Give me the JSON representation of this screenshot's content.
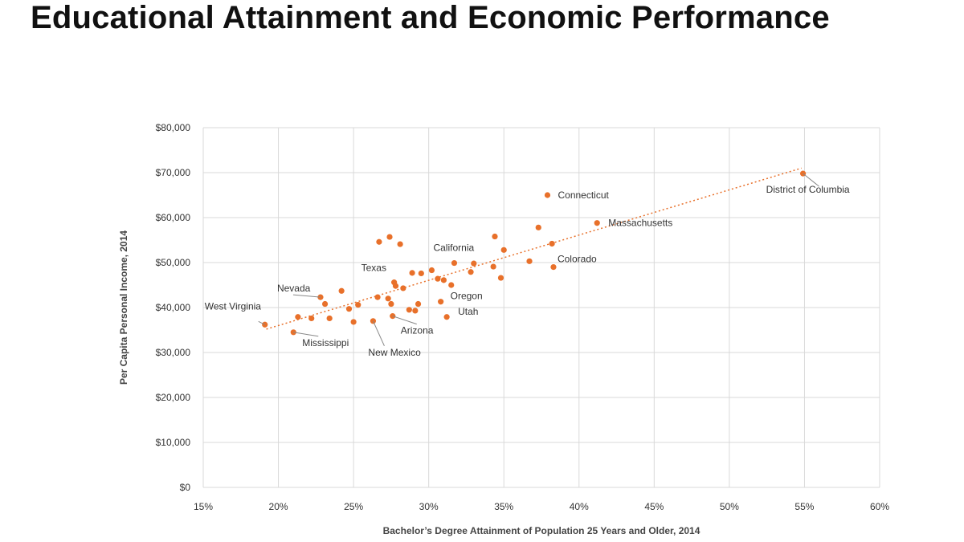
{
  "slide": {
    "title": "Educational Attainment and Economic Performance"
  },
  "chart_data": {
    "type": "scatter",
    "title": "Educational Attainment and Economic Performance",
    "xlabel": "Bachelor’s Degree Attainment of Population 25 Years and Older, 2014",
    "ylabel": "Per Capita Personal Income, 2014",
    "xlim": [
      15,
      60
    ],
    "ylim": [
      0,
      80000
    ],
    "x_ticks": [
      {
        "value": 15,
        "label": "15%"
      },
      {
        "value": 20,
        "label": "20%"
      },
      {
        "value": 25,
        "label": "25%"
      },
      {
        "value": 30,
        "label": "30%"
      },
      {
        "value": 35,
        "label": "35%"
      },
      {
        "value": 40,
        "label": "40%"
      },
      {
        "value": 45,
        "label": "45%"
      },
      {
        "value": 50,
        "label": "50%"
      },
      {
        "value": 55,
        "label": "55%"
      },
      {
        "value": 60,
        "label": "60%"
      }
    ],
    "y_ticks": [
      {
        "value": 0,
        "label": "$0"
      },
      {
        "value": 10000,
        "label": "$10,000"
      },
      {
        "value": 20000,
        "label": "$20,000"
      },
      {
        "value": 30000,
        "label": "$30,000"
      },
      {
        "value": 40000,
        "label": "$40,000"
      },
      {
        "value": 50000,
        "label": "$50,000"
      },
      {
        "value": 60000,
        "label": "$60,000"
      },
      {
        "value": 70000,
        "label": "$70,000"
      },
      {
        "value": 80000,
        "label": "$80,000"
      }
    ],
    "grid": true,
    "point_color": "#E8702A",
    "trendline": {
      "style": "dotted",
      "color": "#E8702A",
      "from": [
        19.2,
        35200
      ],
      "to": [
        54.8,
        71000
      ]
    },
    "points": [
      [
        19.1,
        36200
      ],
      [
        21.0,
        34500
      ],
      [
        21.3,
        37900
      ],
      [
        22.2,
        37600
      ],
      [
        22.8,
        42300
      ],
      [
        23.1,
        40800
      ],
      [
        23.4,
        37600
      ],
      [
        24.2,
        43700
      ],
      [
        24.7,
        39700
      ],
      [
        25.0,
        36800
      ],
      [
        25.3,
        40600
      ],
      [
        26.3,
        37000
      ],
      [
        26.6,
        42300
      ],
      [
        26.7,
        54600
      ],
      [
        27.3,
        42000
      ],
      [
        27.4,
        55700
      ],
      [
        27.5,
        40800
      ],
      [
        27.6,
        38100
      ],
      [
        27.7,
        45600
      ],
      [
        27.8,
        44800
      ],
      [
        28.1,
        54100
      ],
      [
        28.3,
        44300
      ],
      [
        28.7,
        39500
      ],
      [
        28.9,
        47700
      ],
      [
        29.1,
        39300
      ],
      [
        29.3,
        40800
      ],
      [
        29.5,
        47600
      ],
      [
        30.2,
        48300
      ],
      [
        30.6,
        46400
      ],
      [
        30.8,
        41300
      ],
      [
        31.0,
        46100
      ],
      [
        31.2,
        37900
      ],
      [
        31.5,
        45000
      ],
      [
        31.7,
        49900
      ],
      [
        32.8,
        47900
      ],
      [
        33.0,
        49800
      ],
      [
        34.3,
        49100
      ],
      [
        34.4,
        55800
      ],
      [
        34.8,
        46600
      ],
      [
        35.0,
        52800
      ],
      [
        36.7,
        50300
      ],
      [
        37.3,
        57800
      ],
      [
        37.9,
        65000
      ],
      [
        38.2,
        54200
      ],
      [
        38.3,
        49000
      ],
      [
        41.2,
        58800
      ],
      [
        54.9,
        69800
      ]
    ],
    "annotations": [
      {
        "label": "West Virginia",
        "x": 19.1,
        "y": 36200
      },
      {
        "label": "Nevada",
        "x": 22.8,
        "y": 42300
      },
      {
        "label": "Mississippi",
        "x": 21.0,
        "y": 34500
      },
      {
        "label": "Texas",
        "x": 27.7,
        "y": 45600
      },
      {
        "label": "New Mexico",
        "x": 26.3,
        "y": 37000
      },
      {
        "label": "Arizona",
        "x": 27.6,
        "y": 38100
      },
      {
        "label": "California",
        "x": 31.7,
        "y": 49900
      },
      {
        "label": "Oregon",
        "x": 30.8,
        "y": 41300
      },
      {
        "label": "Utah",
        "x": 31.2,
        "y": 37900
      },
      {
        "label": "Connecticut",
        "x": 37.9,
        "y": 65000
      },
      {
        "label": "Massachusetts",
        "x": 41.2,
        "y": 58800
      },
      {
        "label": "Colorado",
        "x": 38.3,
        "y": 49000
      },
      {
        "label": "District of Columbia",
        "x": 54.9,
        "y": 69800
      }
    ]
  }
}
